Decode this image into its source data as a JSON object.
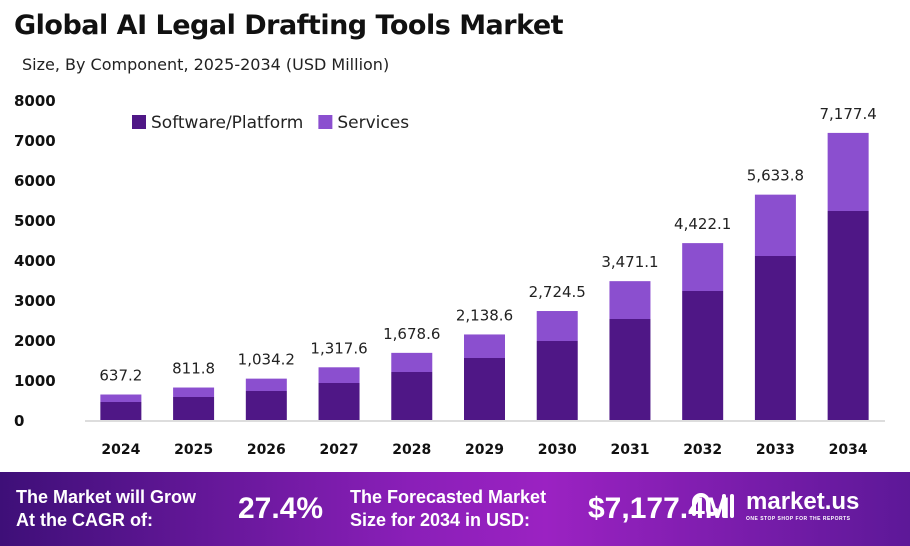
{
  "chart_data": {
    "type": "bar",
    "stacked": true,
    "title": "Global AI Legal Drafting Tools Market",
    "subtitle": "Size, By Component, 2025-2034 (USD Million)",
    "categories": [
      "2024",
      "2025",
      "2026",
      "2027",
      "2028",
      "2029",
      "2030",
      "2031",
      "2032",
      "2033",
      "2034"
    ],
    "series": [
      {
        "name": "Software/Platform",
        "color": "#4f1786",
        "values": [
          450,
          575,
          725,
          925,
          1200,
          1550,
          1975,
          2525,
          3225,
          4100,
          5225
        ]
      },
      {
        "name": "Services",
        "color": "#8b4fcf",
        "values": [
          187.2,
          236.8,
          309.2,
          392.6,
          478.6,
          588.6,
          749.5,
          946.1,
          1197.1,
          1533.8,
          1952.4
        ]
      }
    ],
    "totals": [
      "637.2",
      "811.8",
      "1,034.2",
      "1,317.6",
      "1,678.6",
      "2,138.6",
      "2,724.5",
      "3,471.1",
      "4,422.1",
      "5,633.8",
      "7,177.4"
    ],
    "yticks": [
      "0",
      "1000",
      "2000",
      "3000",
      "4000",
      "5000",
      "6000",
      "7000",
      "8000"
    ],
    "ylim": [
      0,
      8000
    ],
    "grid": false,
    "legend_placement": "top-left"
  },
  "banner": {
    "cagr_label_1": "The Market will Grow",
    "cagr_label_2": "At the CAGR of:",
    "cagr_value": "27.4%",
    "forecast_label_1": "The Forecasted Market",
    "forecast_label_2": "Size for 2034 in USD:",
    "forecast_value": "$7,177.4M",
    "logo_text": "market.us",
    "logo_tagline": "ONE STOP SHOP FOR THE REPORTS"
  }
}
